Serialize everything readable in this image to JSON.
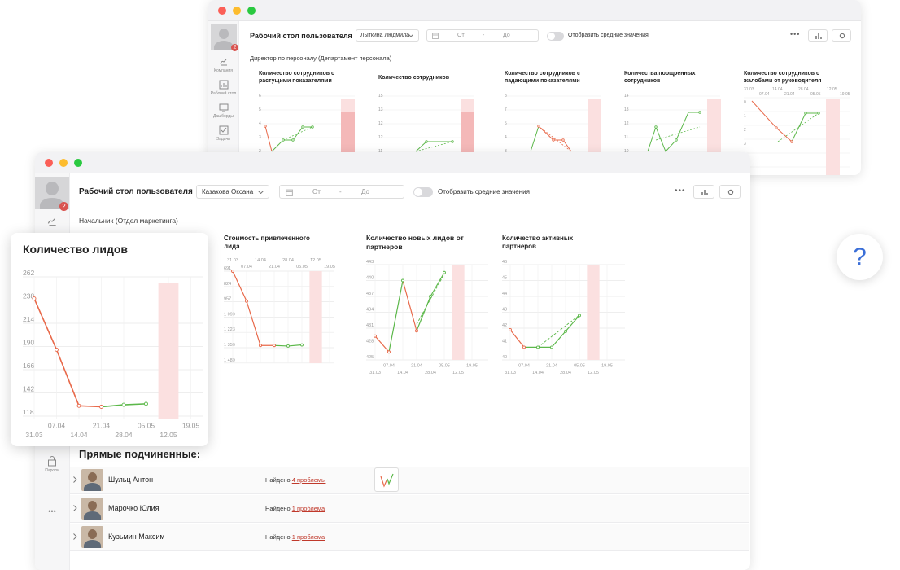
{
  "back_window": {
    "header_title": "Рабочий стол пользователя",
    "user_select": "Лыткина Людмила",
    "date_from": "От",
    "date_sep": "-",
    "date_to": "До",
    "toggle_label": "Отобразить средние значения",
    "avatar_badge": "2",
    "position": "Директор по персоналу (Департамент персонала)",
    "rail_items": [
      "Компания",
      "Рабочий стол",
      "Дашборды",
      "Задачи"
    ],
    "chart_titles": [
      "Количество сотрудников с растущими показателями",
      "Количество сотрудников",
      "Количество сотрудников с падающими показателями",
      "Количества поощренных сотрудников",
      "Количество сотрудников с жалобами от руководителя"
    ]
  },
  "front_window": {
    "header_title": "Рабочий стол пользователя",
    "user_select": "Казакова Оксана",
    "date_from": "От",
    "date_sep": "-",
    "date_to": "До",
    "toggle_label": "Отобразить средние значения",
    "avatar_badge": "2",
    "position": "Начальник (Отдел маркетинга)",
    "rail_items": [
      "Качество",
      "Пароли"
    ],
    "subordinates_heading": "Прямые подчиненные:",
    "subordinates": [
      {
        "name": "Шульц Антон",
        "found_prefix": "Найдено",
        "problems": "4 проблемы"
      },
      {
        "name": "Марочко Юлия",
        "found_prefix": "Найдено",
        "problems": "1 проблема"
      },
      {
        "name": "Кузьмин Максим",
        "found_prefix": "Найдено",
        "problems": "1 проблема"
      }
    ]
  },
  "help_label": "?",
  "colors": {
    "decline": "#e8694a",
    "growth": "#5cb84a",
    "highlight": "#fbe0e0"
  },
  "chart_data": [
    {
      "type": "line",
      "title": "Количество лидов",
      "x_top": [
        "07.04",
        "21.04",
        "05.05",
        "19.05"
      ],
      "x_bottom": [
        "31.03",
        "14.04",
        "28.04",
        "12.05"
      ],
      "y_ticks": [
        "262",
        "238",
        "214",
        "190",
        "166",
        "142",
        "118"
      ],
      "ylim": [
        118,
        262
      ],
      "x": [
        "31.03",
        "07.04",
        "14.04",
        "21.04",
        "28.04",
        "05.05"
      ],
      "values": [
        240,
        188,
        131,
        130,
        132,
        133
      ],
      "highlight": "12.05"
    },
    {
      "type": "line",
      "title": "Стоимость привлеченного лида",
      "x_top": [
        "31.03",
        "14.04",
        "28.04",
        "12.05"
      ],
      "x_mid": [
        "07.04",
        "21.04",
        "05.05",
        "19.05"
      ],
      "y_ticks": [
        "691",
        "824",
        "957",
        "1 090",
        "1 223",
        "1 356",
        "1 489"
      ],
      "x": [
        "31.03",
        "07.04",
        "14.04",
        "21.04",
        "28.04",
        "05.05"
      ],
      "values": [
        690,
        950,
        1335,
        1335,
        1340,
        1330
      ],
      "inverted_axis": true,
      "highlight": "12.05"
    },
    {
      "type": "line",
      "title": "Количество новых лидов от партнеров",
      "x_top": [
        "07.04",
        "21.04",
        "05.05",
        "19.05"
      ],
      "x_bottom": [
        "31.03",
        "14.04",
        "28.04",
        "12.05"
      ],
      "y_ticks": [
        "443",
        "440",
        "437",
        "434",
        "431",
        "428",
        "425"
      ],
      "ylim": [
        425,
        443
      ],
      "x": [
        "31.03",
        "07.04",
        "14.04",
        "21.04",
        "28.04",
        "05.05"
      ],
      "values": [
        429.5,
        426.5,
        440,
        430.5,
        437,
        441.5
      ],
      "highlight": "12.05"
    },
    {
      "type": "line",
      "title": "Количество активных партнеров",
      "x_top": [
        "07.04",
        "21.04",
        "05.05",
        "19.05"
      ],
      "x_bottom": [
        "31.03",
        "14.04",
        "28.04",
        "12.05"
      ],
      "y_ticks": [
        "46",
        "45",
        "44",
        "43",
        "42",
        "41",
        "40"
      ],
      "ylim": [
        40,
        46
      ],
      "x": [
        "31.03",
        "07.04",
        "14.04",
        "21.04",
        "28.04",
        "05.05"
      ],
      "values": [
        41.9,
        40.8,
        40.8,
        40.8,
        41.8,
        42.8
      ],
      "highlight": "12.05"
    }
  ]
}
